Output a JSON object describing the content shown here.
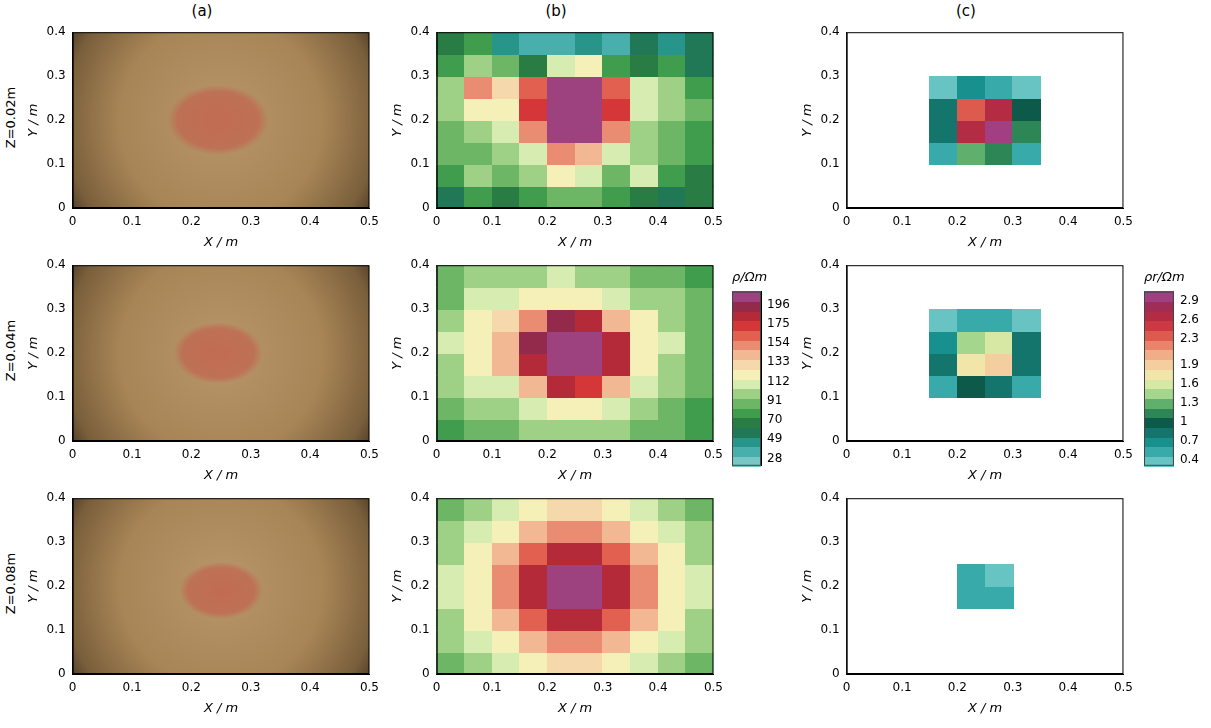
{
  "column_titles": [
    "(a)",
    "(b)",
    "(c)"
  ],
  "row_titles": [
    "Z=0.02m",
    "Z=0.04m",
    "Z=0.08m"
  ],
  "colorbars": [
    {
      "title": "ρ/Ωm",
      "range": [
        20,
        210
      ],
      "ticks": [
        28,
        49,
        70,
        91,
        112,
        133,
        154,
        175,
        196
      ]
    },
    {
      "title": "ρr/Ωm",
      "range": [
        0.3,
        3.05
      ],
      "ticks": [
        0.4,
        0.7,
        1,
        1.3,
        1.6,
        1.9,
        2.3,
        2.6,
        2.9
      ]
    }
  ],
  "chart_data": [
    {
      "type": "image",
      "xlabel": "X / m",
      "ylabel": "Y / m",
      "xlim": [
        0,
        0.5
      ],
      "ylim": [
        0,
        0.4
      ],
      "xticks": [
        0,
        0.1,
        0.2,
        0.3,
        0.4,
        0.5
      ],
      "yticks": [
        0,
        0.1,
        0.2,
        0.3,
        0.4
      ],
      "spot": {
        "x": 0.245,
        "y": 0.2,
        "rx": 0.085,
        "ry": 0.08
      }
    },
    {
      "type": "heatmap",
      "xlabel": "X / m",
      "ylabel": "Y / m",
      "xlim": [
        0,
        0.5
      ],
      "ylim": [
        0,
        0.4
      ],
      "xticks": [
        0,
        0.1,
        0.2,
        0.3,
        0.4,
        0.5
      ],
      "yticks": [
        0,
        0.1,
        0.2,
        0.3,
        0.4
      ],
      "colorbar": "ρ/Ωm",
      "x": [
        0.025,
        0.075,
        0.125,
        0.175,
        0.225,
        0.275,
        0.325,
        0.375,
        0.425,
        0.475
      ],
      "y": [
        0.025,
        0.075,
        0.125,
        0.175,
        0.225,
        0.275,
        0.325,
        0.375
      ],
      "cells": [
        [
          60,
          75,
          70,
          80,
          85,
          91,
          80,
          70,
          60,
          65
        ],
        [
          80,
          100,
          85,
          95,
          120,
          112,
          90,
          105,
          80,
          70
        ],
        [
          85,
          90,
          95,
          110,
          150,
          145,
          110,
          95,
          85,
          75
        ],
        [
          90,
          100,
          112,
          150,
          205,
          205,
          150,
          100,
          90,
          80
        ],
        [
          95,
          120,
          125,
          175,
          205,
          205,
          170,
          105,
          95,
          85
        ],
        [
          100,
          150,
          130,
          160,
          205,
          205,
          160,
          110,
          100,
          80
        ],
        [
          80,
          100,
          90,
          70,
          112,
          120,
          80,
          70,
          75,
          60
        ],
        [
          70,
          80,
          50,
          35,
          40,
          45,
          40,
          60,
          50,
          60
        ]
      ]
    },
    {
      "type": "heatmap",
      "xlabel": "X / m",
      "ylabel": "Y / m",
      "xlim": [
        0,
        0.5
      ],
      "ylim": [
        0,
        0.4
      ],
      "xticks": [
        0,
        0.1,
        0.2,
        0.3,
        0.4,
        0.5
      ],
      "yticks": [
        0,
        0.1,
        0.2,
        0.3,
        0.4
      ],
      "colorbar": "ρr/Ωm",
      "x": [
        0.025,
        0.075,
        0.125,
        0.175,
        0.225,
        0.275,
        0.325,
        0.375,
        0.425,
        0.475
      ],
      "y": [
        0.025,
        0.075,
        0.125,
        0.175,
        0.225,
        0.275,
        0.325,
        0.375
      ],
      "cells": [
        [
          null,
          null,
          null,
          null,
          null,
          null,
          null,
          null,
          null,
          null
        ],
        [
          null,
          null,
          null,
          null,
          null,
          null,
          null,
          null,
          null,
          null
        ],
        [
          null,
          null,
          null,
          0.5,
          1.3,
          1.2,
          0.6,
          null,
          null,
          null
        ],
        [
          null,
          null,
          null,
          0.9,
          2.6,
          3.0,
          1.2,
          null,
          null,
          null
        ],
        [
          null,
          null,
          null,
          0.8,
          2.3,
          2.6,
          1.0,
          null,
          null,
          null
        ],
        [
          null,
          null,
          null,
          0.4,
          0.7,
          0.6,
          0.4,
          null,
          null,
          null
        ],
        [
          null,
          null,
          null,
          null,
          null,
          null,
          null,
          null,
          null,
          null
        ],
        [
          null,
          null,
          null,
          null,
          null,
          null,
          null,
          null,
          null,
          null
        ]
      ]
    },
    {
      "type": "image",
      "xlabel": "X / m",
      "ylabel": "Y / m",
      "xlim": [
        0,
        0.5
      ],
      "ylim": [
        0,
        0.4
      ],
      "xticks": [
        0,
        0.1,
        0.2,
        0.3,
        0.4,
        0.5
      ],
      "yticks": [
        0,
        0.1,
        0.2,
        0.3,
        0.4
      ],
      "spot": {
        "x": 0.245,
        "y": 0.2,
        "rx": 0.075,
        "ry": 0.07
      }
    },
    {
      "type": "heatmap",
      "xlabel": "X / m",
      "ylabel": "Y / m",
      "xlim": [
        0,
        0.5
      ],
      "ylim": [
        0,
        0.4
      ],
      "xticks": [
        0,
        0.1,
        0.2,
        0.3,
        0.4,
        0.5
      ],
      "yticks": [
        0,
        0.1,
        0.2,
        0.3,
        0.4
      ],
      "colorbar": "ρ/Ωm",
      "x": [
        0.025,
        0.075,
        0.125,
        0.175,
        0.225,
        0.275,
        0.325,
        0.375,
        0.425,
        0.475
      ],
      "y": [
        0.025,
        0.075,
        0.125,
        0.175,
        0.225,
        0.275,
        0.325,
        0.375
      ],
      "cells": [
        [
          80,
          85,
          90,
          95,
          100,
          100,
          95,
          90,
          85,
          75
        ],
        [
          90,
          100,
          95,
          105,
          125,
          125,
          110,
          100,
          90,
          80
        ],
        [
          95,
          105,
          110,
          140,
          180,
          175,
          140,
          110,
          95,
          85
        ],
        [
          100,
          115,
          140,
          185,
          205,
          205,
          180,
          125,
          100,
          85
        ],
        [
          105,
          125,
          145,
          190,
          205,
          205,
          180,
          125,
          105,
          90
        ],
        [
          100,
          120,
          130,
          150,
          190,
          185,
          145,
          115,
          100,
          85
        ],
        [
          90,
          105,
          110,
          115,
          125,
          120,
          110,
          100,
          95,
          85
        ],
        [
          85,
          95,
          100,
          100,
          105,
          100,
          95,
          90,
          85,
          80
        ]
      ]
    },
    {
      "type": "heatmap",
      "xlabel": "X / m",
      "ylabel": "Y / m",
      "xlim": [
        0,
        0.5
      ],
      "ylim": [
        0,
        0.4
      ],
      "xticks": [
        0,
        0.1,
        0.2,
        0.3,
        0.4,
        0.5
      ],
      "yticks": [
        0,
        0.1,
        0.2,
        0.3,
        0.4
      ],
      "colorbar": "ρr/Ωm",
      "x": [
        0.025,
        0.075,
        0.125,
        0.175,
        0.225,
        0.275,
        0.325,
        0.375,
        0.425,
        0.475
      ],
      "y": [
        0.025,
        0.075,
        0.125,
        0.175,
        0.225,
        0.275,
        0.325,
        0.375
      ],
      "cells": [
        [
          null,
          null,
          null,
          null,
          null,
          null,
          null,
          null,
          null,
          null
        ],
        [
          null,
          null,
          null,
          null,
          null,
          null,
          null,
          null,
          null,
          null
        ],
        [
          null,
          null,
          null,
          0.5,
          1.0,
          0.9,
          0.5,
          null,
          null,
          null
        ],
        [
          null,
          null,
          null,
          0.8,
          1.8,
          1.9,
          0.9,
          null,
          null,
          null
        ],
        [
          null,
          null,
          null,
          0.7,
          1.5,
          1.6,
          0.8,
          null,
          null,
          null
        ],
        [
          null,
          null,
          null,
          0.4,
          0.6,
          0.6,
          0.4,
          null,
          null,
          null
        ],
        [
          null,
          null,
          null,
          null,
          null,
          null,
          null,
          null,
          null,
          null
        ],
        [
          null,
          null,
          null,
          null,
          null,
          null,
          null,
          null,
          null,
          null
        ]
      ]
    },
    {
      "type": "image",
      "xlabel": "X / m",
      "ylabel": "Y / m",
      "xlim": [
        0,
        0.5
      ],
      "ylim": [
        0,
        0.4
      ],
      "xticks": [
        0,
        0.1,
        0.2,
        0.3,
        0.4,
        0.5
      ],
      "yticks": [
        0,
        0.1,
        0.2,
        0.3,
        0.4
      ],
      "spot": {
        "x": 0.25,
        "y": 0.19,
        "rx": 0.07,
        "ry": 0.065
      }
    },
    {
      "type": "heatmap",
      "xlabel": "X / m",
      "ylabel": "Y / m",
      "xlim": [
        0,
        0.5
      ],
      "ylim": [
        0,
        0.4
      ],
      "xticks": [
        0,
        0.1,
        0.2,
        0.3,
        0.4,
        0.5
      ],
      "yticks": [
        0,
        0.1,
        0.2,
        0.3,
        0.4
      ],
      "colorbar": "ρ/Ωm",
      "x": [
        0.025,
        0.075,
        0.125,
        0.175,
        0.225,
        0.275,
        0.325,
        0.375,
        0.425,
        0.475
      ],
      "y": [
        0.025,
        0.075,
        0.125,
        0.175,
        0.225,
        0.275,
        0.325,
        0.375
      ],
      "cells": [
        [
          85,
          100,
          112,
          122,
          130,
          130,
          122,
          112,
          100,
          85
        ],
        [
          95,
          112,
          125,
          140,
          150,
          150,
          140,
          125,
          112,
          95
        ],
        [
          100,
          120,
          140,
          165,
          185,
          185,
          165,
          140,
          120,
          100
        ],
        [
          105,
          125,
          150,
          185,
          205,
          205,
          185,
          150,
          125,
          105
        ],
        [
          105,
          125,
          150,
          185,
          205,
          205,
          185,
          150,
          125,
          105
        ],
        [
          100,
          120,
          140,
          160,
          180,
          180,
          160,
          140,
          120,
          100
        ],
        [
          95,
          112,
          125,
          140,
          150,
          150,
          140,
          125,
          112,
          95
        ],
        [
          85,
          100,
          112,
          125,
          133,
          133,
          125,
          112,
          100,
          85
        ]
      ]
    },
    {
      "type": "heatmap",
      "xlabel": "X / m",
      "ylabel": "Y / m",
      "xlim": [
        0,
        0.5
      ],
      "ylim": [
        0,
        0.4
      ],
      "xticks": [
        0,
        0.1,
        0.2,
        0.3,
        0.4,
        0.5
      ],
      "yticks": [
        0,
        0.1,
        0.2,
        0.3,
        0.4
      ],
      "colorbar": "ρr/Ωm",
      "x": [
        0.025,
        0.075,
        0.125,
        0.175,
        0.225,
        0.275,
        0.325,
        0.375,
        0.425,
        0.475
      ],
      "y": [
        0.025,
        0.075,
        0.125,
        0.175,
        0.225,
        0.275,
        0.325,
        0.375
      ],
      "cells": [
        [
          null,
          null,
          null,
          null,
          null,
          null,
          null,
          null,
          null,
          null
        ],
        [
          null,
          null,
          null,
          null,
          null,
          null,
          null,
          null,
          null,
          null
        ],
        [
          null,
          null,
          null,
          null,
          null,
          null,
          null,
          null,
          null,
          null
        ],
        [
          null,
          null,
          null,
          null,
          0.5,
          0.5,
          null,
          null,
          null,
          null
        ],
        [
          null,
          null,
          null,
          null,
          0.5,
          0.45,
          null,
          null,
          null,
          null
        ],
        [
          null,
          null,
          null,
          null,
          null,
          null,
          null,
          null,
          null,
          null
        ],
        [
          null,
          null,
          null,
          null,
          null,
          null,
          null,
          null,
          null,
          null
        ],
        [
          null,
          null,
          null,
          null,
          null,
          null,
          null,
          null,
          null,
          null
        ]
      ]
    }
  ]
}
